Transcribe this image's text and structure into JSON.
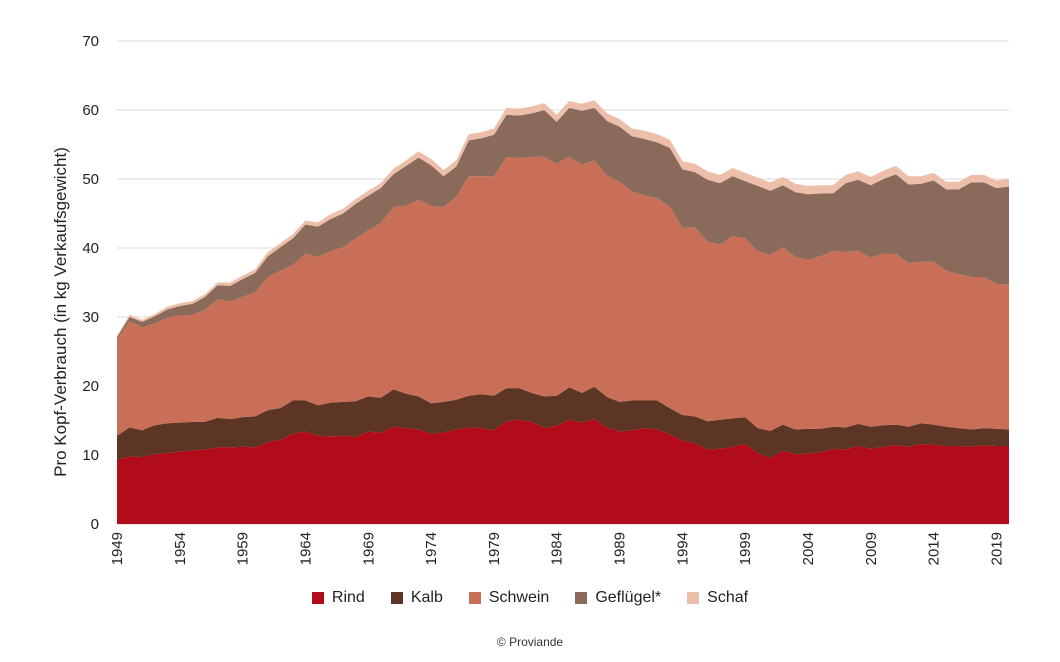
{
  "chart_data": {
    "type": "area",
    "stacked": true,
    "ylabel": "Pro Kopf-Verbrauch (in kg Verkaufsgewicht)",
    "ylim": [
      0,
      70
    ],
    "yticks": [
      0,
      10,
      20,
      30,
      40,
      50,
      60,
      70
    ],
    "xlim": [
      1949,
      2020
    ],
    "xticks": [
      1949,
      1954,
      1959,
      1964,
      1969,
      1974,
      1979,
      1984,
      1989,
      1994,
      1999,
      2004,
      2009,
      2014,
      2019
    ],
    "grid": true,
    "x": [
      1949,
      1950,
      1951,
      1952,
      1953,
      1954,
      1955,
      1956,
      1957,
      1958,
      1959,
      1960,
      1961,
      1962,
      1963,
      1964,
      1965,
      1966,
      1967,
      1968,
      1969,
      1970,
      1971,
      1972,
      1973,
      1974,
      1975,
      1976,
      1977,
      1978,
      1979,
      1980,
      1981,
      1982,
      1983,
      1984,
      1985,
      1986,
      1987,
      1988,
      1989,
      1990,
      1991,
      1992,
      1993,
      1994,
      1995,
      1996,
      1997,
      1998,
      1999,
      2000,
      2001,
      2002,
      2003,
      2004,
      2005,
      2006,
      2007,
      2008,
      2009,
      2010,
      2011,
      2012,
      2013,
      2014,
      2015,
      2016,
      2017,
      2018,
      2019,
      2020
    ],
    "series": [
      {
        "name": "Rind",
        "color": "#b20b19",
        "values": [
          9.3,
          9.8,
          9.7,
          10.1,
          10.3,
          10.5,
          10.7,
          10.8,
          11.1,
          11.1,
          11.2,
          11.1,
          11.9,
          12.2,
          13.1,
          13.4,
          12.8,
          12.7,
          12.8,
          12.6,
          13.4,
          13.2,
          14.1,
          13.9,
          13.7,
          13.1,
          13.3,
          13.7,
          14.0,
          13.9,
          13.6,
          14.9,
          15.1,
          14.8,
          13.9,
          14.2,
          15.1,
          14.7,
          15.2,
          14.0,
          13.4,
          13.6,
          13.9,
          13.7,
          13.0,
          12.1,
          11.7,
          10.8,
          10.9,
          11.2,
          11.6,
          10.3,
          9.6,
          10.6,
          10.1,
          10.2,
          10.4,
          10.9,
          10.8,
          11.3,
          10.9,
          11.2,
          11.4,
          11.2,
          11.6,
          11.5,
          11.3,
          11.3,
          11.2,
          11.4,
          11.3,
          11.3
        ]
      },
      {
        "name": "Kalb",
        "color": "#5c3524",
        "values": [
          3.5,
          4.2,
          3.9,
          4.2,
          4.3,
          4.2,
          4.1,
          4.0,
          4.3,
          4.1,
          4.3,
          4.5,
          4.6,
          4.6,
          4.8,
          4.5,
          4.4,
          4.9,
          4.9,
          5.2,
          5.1,
          5.1,
          5.4,
          5.0,
          4.8,
          4.4,
          4.4,
          4.3,
          4.6,
          4.9,
          5.0,
          4.8,
          4.6,
          4.2,
          4.6,
          4.4,
          4.7,
          4.3,
          4.7,
          4.4,
          4.3,
          4.3,
          4.0,
          4.2,
          3.8,
          3.7,
          3.9,
          4.1,
          4.2,
          4.1,
          3.9,
          3.6,
          3.9,
          3.8,
          3.6,
          3.6,
          3.4,
          3.2,
          3.2,
          3.2,
          3.2,
          3.1,
          3.0,
          2.9,
          3.0,
          2.9,
          2.8,
          2.6,
          2.5,
          2.5,
          2.5,
          2.4
        ]
      },
      {
        "name": "Schwein",
        "color": "#c96f58",
        "values": [
          13.9,
          15.4,
          14.9,
          14.8,
          15.3,
          15.5,
          15.5,
          16.2,
          17.2,
          17.0,
          17.4,
          18.0,
          19.3,
          19.9,
          19.6,
          21.3,
          21.5,
          21.9,
          22.4,
          23.6,
          24.1,
          25.3,
          26.4,
          27.2,
          28.5,
          28.6,
          28.2,
          29.4,
          31.8,
          31.6,
          31.8,
          33.5,
          33.3,
          34.2,
          34.7,
          33.6,
          33.4,
          33.1,
          32.8,
          32.1,
          31.9,
          30.3,
          29.7,
          29.3,
          29.2,
          27.1,
          27.4,
          26.0,
          25.4,
          26.4,
          25.9,
          25.6,
          25.5,
          25.7,
          25.0,
          24.5,
          25.0,
          25.5,
          25.4,
          25.1,
          24.5,
          24.9,
          24.8,
          23.7,
          23.4,
          23.6,
          22.6,
          22.3,
          22.1,
          21.9,
          21.0,
          21.0
        ]
      },
      {
        "name": "Geflügel*",
        "color": "#8a6a5a",
        "values": [
          0.4,
          0.6,
          0.8,
          1.0,
          1.2,
          1.4,
          1.6,
          1.9,
          2.0,
          2.3,
          2.6,
          2.8,
          3.0,
          3.4,
          3.9,
          4.2,
          4.4,
          4.7,
          4.9,
          5.0,
          5.0,
          5.1,
          4.8,
          5.8,
          6.1,
          5.9,
          4.5,
          4.4,
          5.2,
          5.5,
          6.0,
          6.1,
          6.2,
          6.3,
          6.8,
          6.1,
          7.1,
          7.8,
          7.6,
          7.9,
          8.0,
          8.0,
          8.2,
          8.1,
          8.5,
          8.5,
          8.0,
          9.0,
          8.9,
          8.7,
          8.3,
          9.5,
          9.3,
          9.0,
          9.4,
          9.5,
          9.1,
          8.3,
          10.0,
          10.3,
          10.5,
          10.8,
          11.5,
          11.4,
          11.3,
          11.8,
          11.8,
          12.3,
          13.7,
          13.7,
          13.9,
          14.2
        ]
      },
      {
        "name": "Schaf",
        "color": "#edbfab",
        "values": [
          0.2,
          0.3,
          0.3,
          0.3,
          0.4,
          0.4,
          0.4,
          0.4,
          0.4,
          0.5,
          0.5,
          0.5,
          0.6,
          0.6,
          0.6,
          0.6,
          0.6,
          0.7,
          0.7,
          0.7,
          0.7,
          0.7,
          0.8,
          0.8,
          0.9,
          0.9,
          0.9,
          0.9,
          0.9,
          0.9,
          0.9,
          1.0,
          1.0,
          1.0,
          1.0,
          1.0,
          1.0,
          1.0,
          1.1,
          1.1,
          1.1,
          1.1,
          1.2,
          1.2,
          1.2,
          1.2,
          1.2,
          1.2,
          1.2,
          1.2,
          1.2,
          1.2,
          1.2,
          1.2,
          1.2,
          1.2,
          1.2,
          1.2,
          1.2,
          1.2,
          1.2,
          1.2,
          1.2,
          1.2,
          1.1,
          1.1,
          1.1,
          1.1,
          1.1,
          1.1,
          1.1,
          1.1
        ]
      }
    ]
  },
  "copyright": "© Proviande"
}
